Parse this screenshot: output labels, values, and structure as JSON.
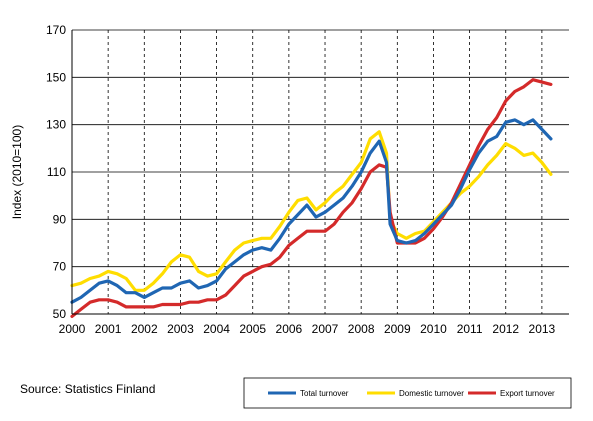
{
  "chart_data": {
    "type": "line",
    "title": "",
    "xlabel": "",
    "ylabel": "Index (2010=100)",
    "ylim": [
      50,
      170
    ],
    "xlim": [
      2000,
      2013.75
    ],
    "y_ticks": [
      50,
      70,
      90,
      110,
      130,
      150,
      170
    ],
    "x_ticks": [
      "2000",
      "2001",
      "2002",
      "2003",
      "2004",
      "2005",
      "2006",
      "2007",
      "2008",
      "2009",
      "2010",
      "2011",
      "2012",
      "2013"
    ],
    "grid": {
      "horizontal": "solid",
      "vertical": "dashed"
    },
    "legend_position": "bottom-right, boxed",
    "source": "Source: Statistics Finland",
    "series": [
      {
        "name": "Total turnover",
        "color": "#1f66b3",
        "x": [
          2000,
          2000.25,
          2000.5,
          2000.75,
          2001,
          2001.25,
          2001.5,
          2001.75,
          2002,
          2002.25,
          2002.5,
          2002.75,
          2003,
          2003.25,
          2003.5,
          2003.75,
          2004,
          2004.25,
          2004.5,
          2004.75,
          2005,
          2005.25,
          2005.5,
          2005.75,
          2006,
          2006.25,
          2006.5,
          2006.75,
          2007,
          2007.25,
          2007.5,
          2007.75,
          2008,
          2008.25,
          2008.5,
          2008.7,
          2008.8,
          2009,
          2009.25,
          2009.5,
          2009.75,
          2010,
          2010.25,
          2010.5,
          2010.75,
          2011,
          2011.25,
          2011.5,
          2011.75,
          2012,
          2012.25,
          2012.5,
          2012.75,
          2013,
          2013.25
        ],
        "values": [
          55,
          57,
          60,
          63,
          64,
          62,
          59,
          59,
          57,
          59,
          61,
          61,
          63,
          64,
          61,
          62,
          64,
          69,
          72,
          75,
          77,
          78,
          77,
          82,
          88,
          92,
          96,
          91,
          93,
          96,
          99,
          104,
          110,
          118,
          123,
          114,
          88,
          81,
          80,
          81,
          84,
          88,
          92,
          96,
          103,
          111,
          118,
          123,
          125,
          131,
          132,
          130,
          132,
          128,
          124
        ]
      },
      {
        "name": "Domestic turnover",
        "color": "#ffdd00",
        "x": [
          2000,
          2000.25,
          2000.5,
          2000.75,
          2001,
          2001.25,
          2001.5,
          2001.75,
          2002,
          2002.25,
          2002.5,
          2002.75,
          2003,
          2003.25,
          2003.5,
          2003.75,
          2004,
          2004.25,
          2004.5,
          2004.75,
          2005,
          2005.25,
          2005.5,
          2005.75,
          2006,
          2006.25,
          2006.5,
          2006.75,
          2007,
          2007.25,
          2007.5,
          2007.75,
          2008,
          2008.25,
          2008.5,
          2008.7,
          2008.8,
          2009,
          2009.25,
          2009.5,
          2009.75,
          2010,
          2010.25,
          2010.5,
          2010.75,
          2011,
          2011.25,
          2011.5,
          2011.75,
          2012,
          2012.25,
          2012.5,
          2012.75,
          2013,
          2013.25
        ],
        "values": [
          62,
          63,
          65,
          66,
          68,
          67,
          65,
          60,
          60,
          63,
          67,
          72,
          75,
          74,
          68,
          66,
          67,
          72,
          77,
          80,
          81,
          82,
          82,
          87,
          93,
          98,
          99,
          94,
          97,
          101,
          104,
          109,
          114,
          124,
          127,
          118,
          90,
          84,
          82,
          84,
          85,
          89,
          93,
          97,
          101,
          104,
          108,
          113,
          117,
          122,
          120,
          117,
          118,
          114,
          109
        ]
      },
      {
        "name": "Export turnover",
        "color": "#d42a2a",
        "x": [
          2000,
          2000.25,
          2000.5,
          2000.75,
          2001,
          2001.25,
          2001.5,
          2001.75,
          2002,
          2002.25,
          2002.5,
          2002.75,
          2003,
          2003.25,
          2003.5,
          2003.75,
          2004,
          2004.25,
          2004.5,
          2004.75,
          2005,
          2005.25,
          2005.5,
          2005.75,
          2006,
          2006.25,
          2006.5,
          2006.75,
          2007,
          2007.25,
          2007.5,
          2007.75,
          2008,
          2008.25,
          2008.5,
          2008.7,
          2008.8,
          2009,
          2009.25,
          2009.5,
          2009.75,
          2010,
          2010.25,
          2010.5,
          2010.75,
          2011,
          2011.25,
          2011.5,
          2011.75,
          2012,
          2012.25,
          2012.5,
          2012.75,
          2013,
          2013.25
        ],
        "values": [
          49,
          52,
          55,
          56,
          56,
          55,
          53,
          53,
          53,
          53,
          54,
          54,
          54,
          55,
          55,
          56,
          56,
          58,
          62,
          66,
          68,
          70,
          71,
          74,
          79,
          82,
          85,
          85,
          85,
          88,
          93,
          97,
          103,
          110,
          113,
          112,
          93,
          80,
          80,
          80,
          82,
          86,
          91,
          97,
          105,
          113,
          121,
          128,
          133,
          140,
          144,
          146,
          149,
          148,
          147
        ]
      }
    ]
  }
}
